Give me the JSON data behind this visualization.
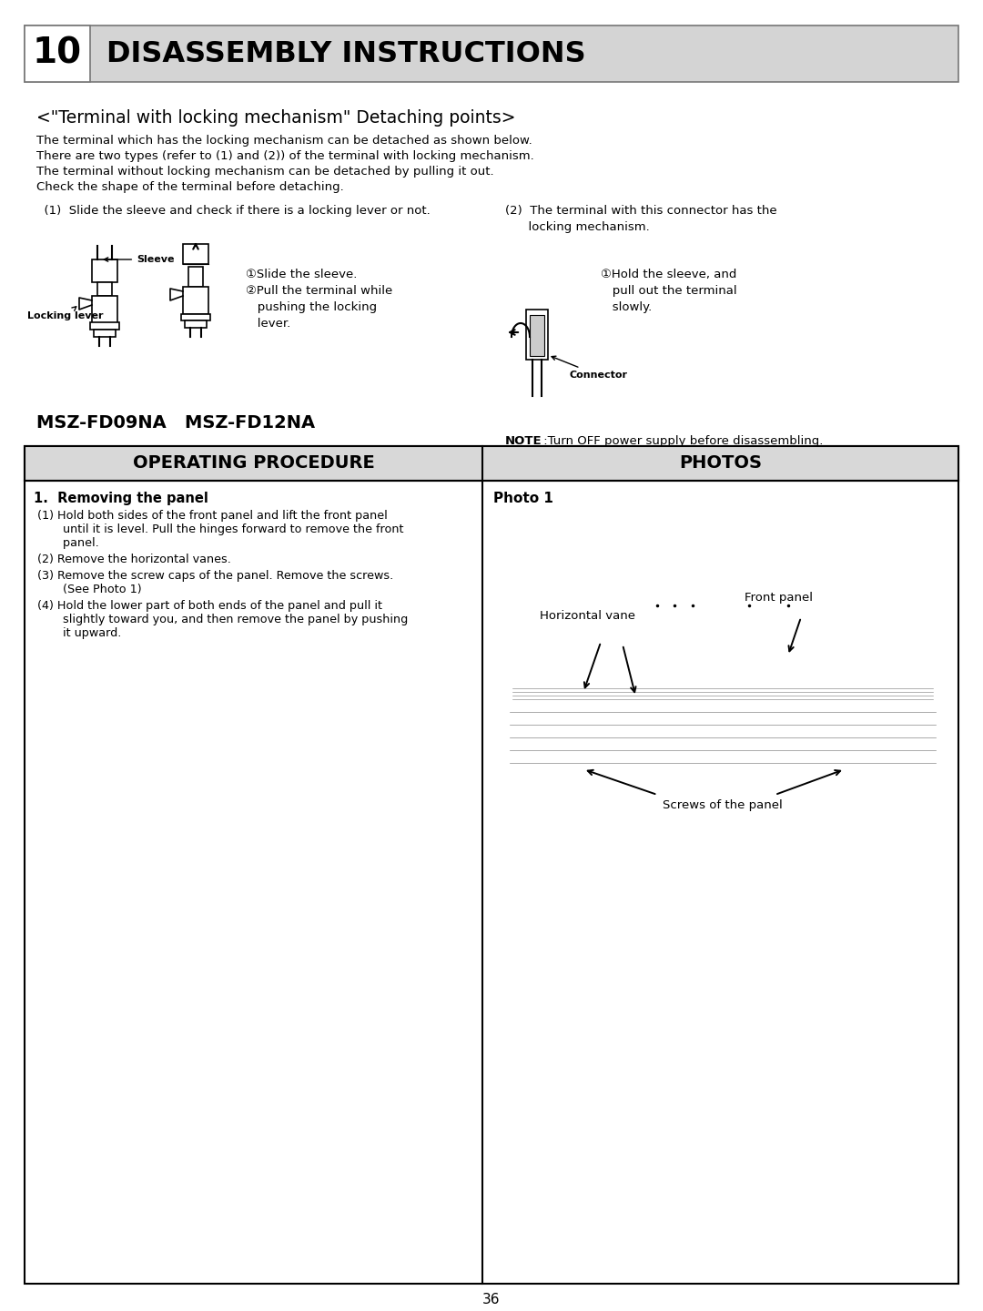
{
  "page_number": "36",
  "background_color": "#ffffff",
  "header_bg": "#d4d4d4",
  "header_number": "10",
  "header_title": "DISASSEMBLY INSTRUCTIONS",
  "section_title": "<\"Terminal with locking mechanism\" Detaching points>",
  "section_body_lines": [
    "The terminal which has the locking mechanism can be detached as shown below.",
    "There are two types (refer to (1) and (2)) of the terminal with locking mechanism.",
    "The terminal without locking mechanism can be detached by pulling it out.",
    "Check the shape of the terminal before detaching."
  ],
  "col1_header": "  (1)  Slide the sleeve and check if there is a locking lever or not.",
  "col1_instructions_1": "①Slide the sleeve.",
  "col1_instructions_2": "②Pull the terminal while",
  "col1_instructions_3": "   pushing the locking",
  "col1_instructions_4": "   lever.",
  "col2_header_1": "(2)  The terminal with this connector has the",
  "col2_header_2": "      locking mechanism.",
  "col2_instructions_1": "①Hold the sleeve, and",
  "col2_instructions_2": "   pull out the terminal",
  "col2_instructions_3": "   slowly.",
  "col2_label": "Connector",
  "model_title": "MSZ-FD09NA   MSZ-FD12NA",
  "note_bold": "NOTE",
  "note_rest": " :Turn OFF power supply before disassembling.",
  "table_col1_header": "OPERATING PROCEDURE",
  "table_col2_header": "PHOTOS",
  "procedure_title": "1.  Removing the panel",
  "procedure_steps": [
    [
      "(1) Hold both sides of the front panel and lift the front panel",
      "    until it is level. Pull the hinges forward to remove the front",
      "    panel."
    ],
    [
      "(2) Remove the horizontal vanes."
    ],
    [
      "(3) Remove the screw caps of the panel. Remove the screws.",
      "    (See Photo 1)"
    ],
    [
      "(4) Hold the lower part of both ends of the panel and pull it",
      "    slightly toward you, and then remove the panel by pushing",
      "    it upward."
    ]
  ],
  "photo_label": "Photo 1",
  "photo_annot_hv": "Horizontal vane",
  "photo_annot_fp": "Front panel",
  "photo_annot_sc": "Screws of the panel"
}
